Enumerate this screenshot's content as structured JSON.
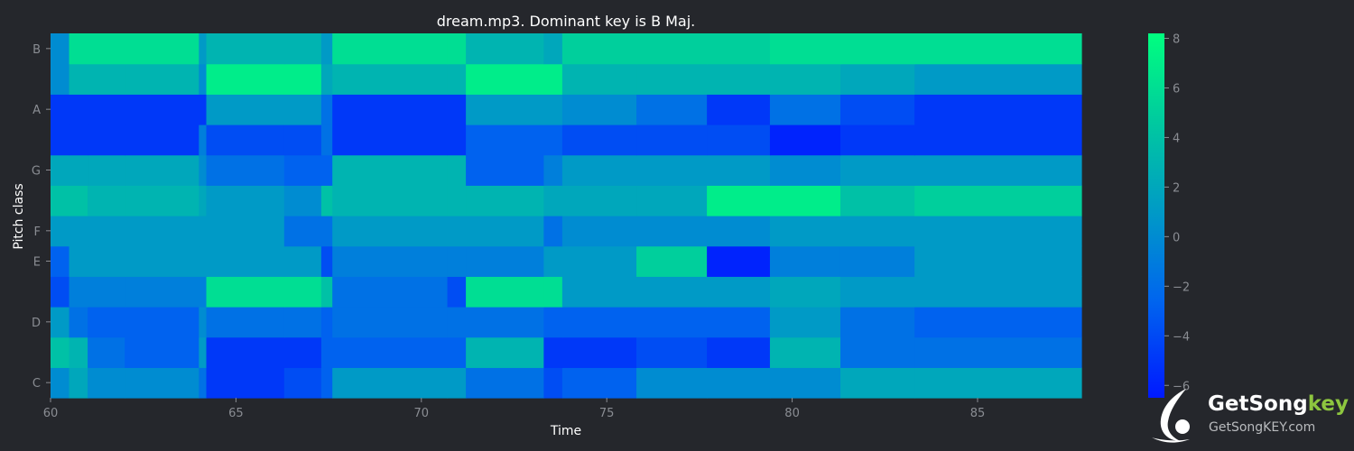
{
  "chart_data": {
    "type": "heatmap",
    "title": "dream.mp3. Dominant key is B Maj.",
    "xlabel": "Time",
    "ylabel": "Pitch class",
    "xlim": [
      60,
      87.8
    ],
    "x_ticks": [
      60,
      65,
      70,
      75,
      80,
      85
    ],
    "y_ticks": [
      "C",
      "D",
      "E",
      "F",
      "G",
      "A",
      "B"
    ],
    "pitch_rows": [
      "C",
      "C#",
      "D",
      "D#",
      "E",
      "F",
      "F#",
      "G",
      "G#",
      "A",
      "A#",
      "B"
    ],
    "colorbar": {
      "min": -6.5,
      "max": 8.2,
      "ticks": [
        -6,
        -4,
        -2,
        0,
        2,
        4,
        6,
        8
      ],
      "colors": [
        "#0019ff",
        "#0066ee",
        "#0098c8",
        "#00c8a0",
        "#00ff7f"
      ]
    },
    "time_breaks": [
      60,
      60.5,
      61,
      62,
      64,
      64.2,
      66.3,
      67.3,
      67.6,
      70.7,
      71.2,
      73.3,
      73.8,
      75.8,
      77.7,
      79.4,
      81.3,
      83.3,
      87.8
    ],
    "segments": {
      "C": [
        0,
        2,
        0,
        0,
        -2,
        -5,
        -4,
        -3,
        1,
        1,
        -2,
        -4,
        -3,
        0,
        0,
        0,
        2,
        2
      ],
      "C#": [
        4,
        3,
        -2,
        -3,
        1,
        -5,
        -5,
        -3,
        -3,
        -3,
        3,
        -5,
        -5,
        -4,
        -5,
        3,
        -2,
        -2
      ],
      "D": [
        1,
        -2,
        -3,
        -3,
        0,
        -2,
        -2,
        -3,
        -2,
        -2,
        -2,
        -3,
        -3,
        -3,
        -3,
        1,
        -2,
        -3
      ],
      "D#": [
        -4,
        -1,
        -1,
        -1,
        -1,
        6,
        6,
        4,
        -2,
        -4,
        6,
        6,
        1,
        1,
        1,
        2,
        1,
        1
      ],
      "E": [
        -3,
        1,
        1,
        1,
        1,
        1,
        1,
        -4,
        -1,
        -1,
        -1,
        1,
        1,
        5,
        -6,
        -1,
        -1,
        1
      ],
      "F": [
        1,
        1,
        1,
        1,
        1,
        1,
        -2,
        -2,
        1,
        1,
        1,
        -2,
        0,
        0,
        0,
        1,
        1,
        1
      ],
      "F#": [
        4,
        4,
        3,
        3,
        2,
        1,
        0,
        4,
        3,
        3,
        3,
        2,
        2,
        2,
        7,
        7,
        4,
        5
      ],
      "G": [
        2,
        2,
        2,
        2,
        0,
        -2,
        -3,
        -3,
        3,
        3,
        -3,
        -1,
        1,
        1,
        1,
        0,
        1,
        1
      ],
      "G#": [
        -5,
        -5,
        -5,
        -5,
        -1,
        -4,
        -4,
        -2,
        -5,
        -5,
        -3,
        -3,
        -4,
        -4,
        -4,
        -6,
        -5,
        -5
      ],
      "A": [
        -5,
        -5,
        -5,
        -5,
        -5,
        1,
        1,
        -2,
        -5,
        -5,
        1,
        1,
        0,
        -2,
        -5,
        -2,
        -4,
        -5
      ],
      "A#": [
        0,
        3,
        3,
        3,
        0,
        7,
        7,
        2,
        3,
        3,
        7,
        7,
        3,
        3,
        3,
        3,
        2,
        1
      ],
      "B": [
        0,
        6,
        6,
        6,
        1,
        3,
        3,
        1,
        6,
        6,
        3,
        2,
        5,
        5,
        5,
        6,
        6,
        6
      ]
    }
  },
  "logo": {
    "name_main": "GetSong",
    "name_accent": "key",
    "url": "GetSongKEY.com"
  }
}
